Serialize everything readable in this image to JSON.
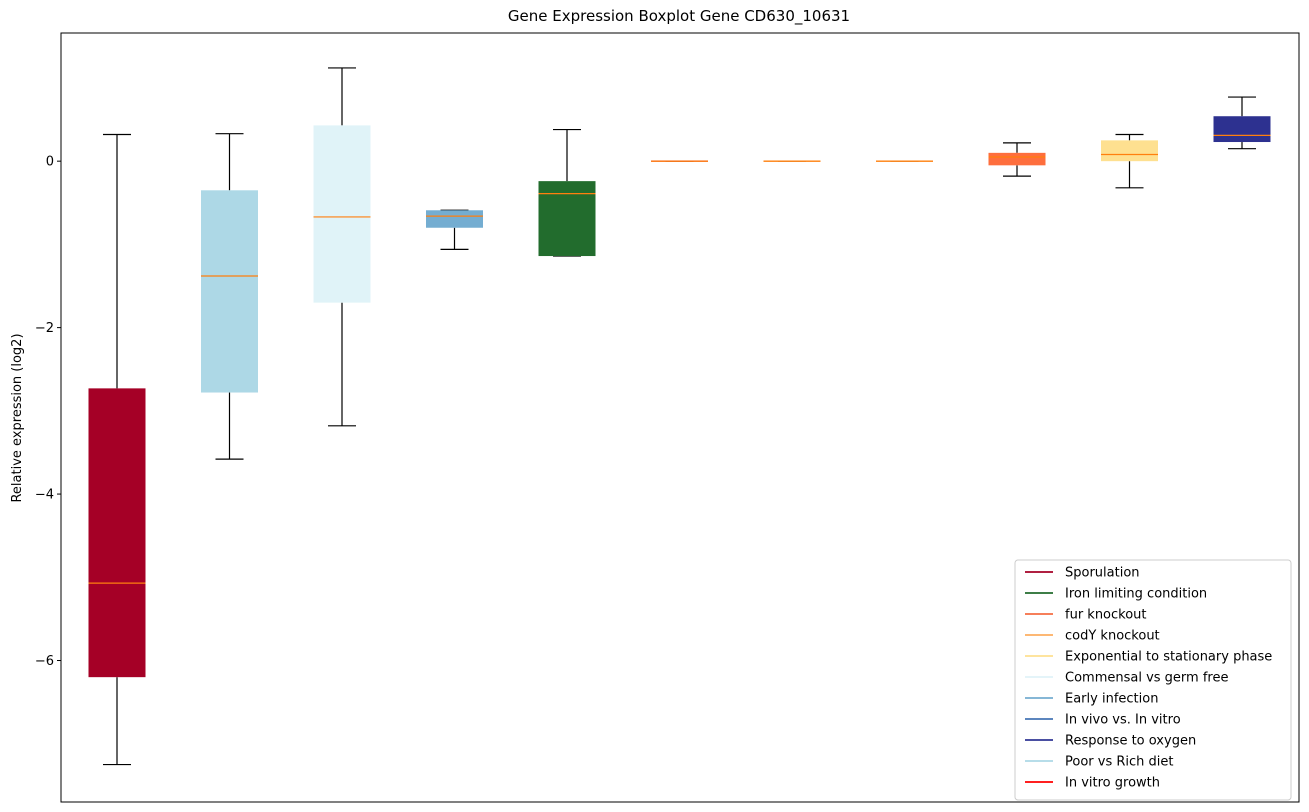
{
  "chart_data": {
    "type": "boxplot",
    "title": "Gene Expression Boxplot Gene CD630_10631",
    "xlabel": "",
    "ylabel": "Relative expression (log2)",
    "ylim": [
      -7.7,
      1.54
    ],
    "yticks": [
      0,
      -2,
      -4,
      -6
    ],
    "ytick_labels": [
      "0",
      "−2",
      "−4",
      "−6"
    ],
    "grid": false,
    "legend_position": "lower right",
    "median_color": "#ff7f0e",
    "whisker_color": "#000000",
    "boxes": [
      {
        "color": "#a50026",
        "whisker_low": -7.25,
        "q1": -6.2,
        "median": -5.07,
        "q3": -2.73,
        "whisker_high": 0.32
      },
      {
        "color": "#add8e6",
        "whisker_low": -3.58,
        "q1": -2.78,
        "median": -1.38,
        "q3": -0.35,
        "whisker_high": 0.33
      },
      {
        "color": "#e0f3f8",
        "whisker_low": -3.18,
        "q1": -1.7,
        "median": -0.67,
        "q3": 0.43,
        "whisker_high": 1.12
      },
      {
        "color": "#74add1",
        "whisker_low": -1.06,
        "q1": -0.8,
        "median": -0.66,
        "q3": -0.59,
        "whisker_high": -0.59
      },
      {
        "color": "#226c2d",
        "whisker_low": -1.14,
        "q1": -1.14,
        "median": -0.39,
        "q3": -0.24,
        "whisker_high": 0.38
      },
      {
        "color": "#f46d43",
        "whisker_low": 0.0,
        "q1": 0.0,
        "median": 0.0,
        "q3": 0.0,
        "whisker_high": 0.0
      },
      {
        "color": "#fdae61",
        "whisker_low": 0.0,
        "q1": 0.0,
        "median": 0.0,
        "q3": 0.0,
        "whisker_high": 0.0
      },
      {
        "color": "#fdae61",
        "whisker_low": 0.0,
        "q1": 0.0,
        "median": 0.0,
        "q3": 0.0,
        "whisker_high": 0.0
      },
      {
        "color": "#fe6e3d",
        "whisker_low": -0.18,
        "q1": -0.05,
        "median": 0.05,
        "q3": 0.1,
        "whisker_high": 0.22
      },
      {
        "color": "#fee090",
        "whisker_low": -0.32,
        "q1": 0.0,
        "median": 0.08,
        "q3": 0.25,
        "whisker_high": 0.32
      },
      {
        "color": "#2d3190",
        "whisker_low": 0.15,
        "q1": 0.23,
        "median": 0.31,
        "q3": 0.54,
        "whisker_high": 0.77
      }
    ],
    "legend": [
      {
        "label": "Sporulation",
        "color": "#a50026"
      },
      {
        "label": "Iron limiting condition",
        "color": "#226c2d"
      },
      {
        "label": "fur knockout",
        "color": "#f46d43"
      },
      {
        "label": "codY knockout",
        "color": "#fdae61"
      },
      {
        "label": "Exponential to stationary phase",
        "color": "#fee090"
      },
      {
        "label": "Commensal vs germ free",
        "color": "#e0f3f8"
      },
      {
        "label": "Early infection",
        "color": "#74add1"
      },
      {
        "label": "In vivo vs. In vitro",
        "color": "#4575b4"
      },
      {
        "label": "Response to oxygen",
        "color": "#313695"
      },
      {
        "label": "Poor vs Rich diet",
        "color": "#add8e6"
      },
      {
        "label": "In vitro growth",
        "color": "#ff0000"
      }
    ]
  }
}
